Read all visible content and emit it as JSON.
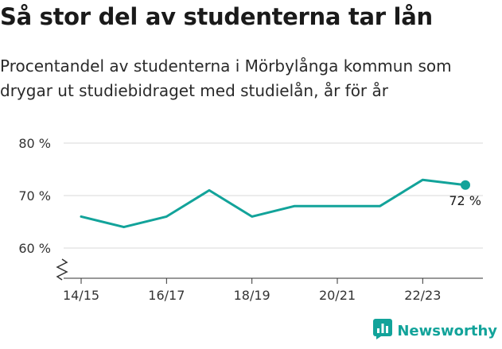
{
  "title": "Så stor del av studenterna tar lån",
  "subtitle": "Procentandel av studenterna i Mörbylånga kommun som drygar ut studiebidraget med studielån, år för år",
  "brand": {
    "name": "Newsworthy",
    "icon": "bar-chart-icon"
  },
  "colors": {
    "line": "#12a39a",
    "grid": "#d9d9d9",
    "axis": "#333333"
  },
  "chart_data": {
    "type": "line",
    "title": "Så stor del av studenterna tar lån",
    "x": [
      "14/15",
      "15/16",
      "16/17",
      "17/18",
      "18/19",
      "19/20",
      "20/21",
      "21/22",
      "22/23",
      "23/24"
    ],
    "x_ticks": [
      "14/15",
      "16/17",
      "18/19",
      "20/21",
      "22/23"
    ],
    "series": [
      {
        "values": [
          66,
          64,
          66,
          71,
          66,
          68,
          68,
          68,
          73,
          72
        ]
      }
    ],
    "y_ticks": [
      60,
      70,
      80
    ],
    "y_tick_labels": [
      "60 %",
      "70 %",
      "80 %"
    ],
    "ylim": [
      60,
      80
    ],
    "y_axis_break": true,
    "last_value_label": "72 %",
    "grid": true
  }
}
